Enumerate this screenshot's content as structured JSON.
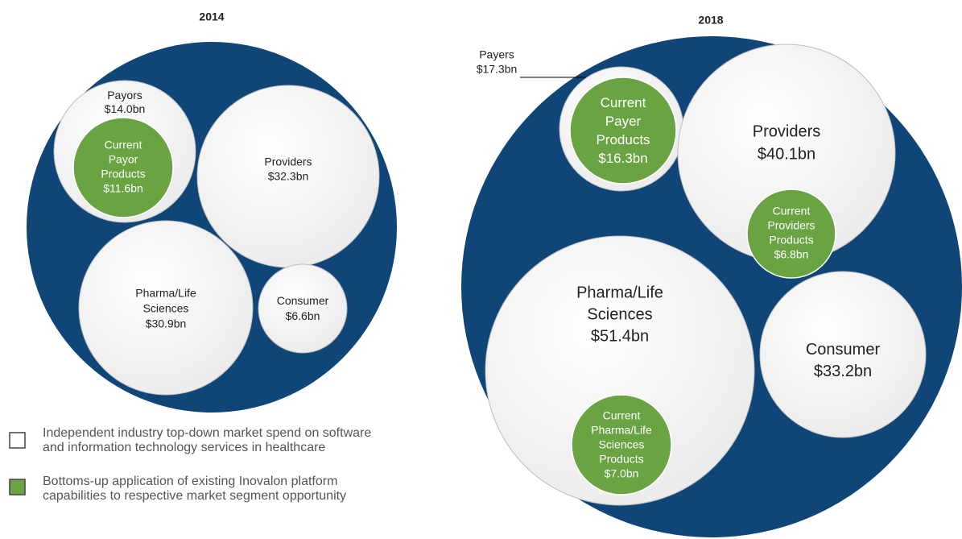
{
  "panels": [
    {
      "title": "2014",
      "circles": [
        {
          "lines": [
            "Payors",
            "$14.0bn"
          ]
        },
        {
          "lines": [
            "Current",
            "Payor",
            "Products",
            "$11.6bn"
          ]
        },
        {
          "lines": [
            "Providers",
            "$32.3bn"
          ]
        },
        {
          "lines": [
            "Pharma/Life",
            "Sciences",
            "$30.9bn"
          ]
        },
        {
          "lines": [
            "Consumer",
            "$6.6bn"
          ]
        }
      ]
    },
    {
      "title": "2018",
      "circles": [
        {
          "lines": [
            "Payers",
            "$17.3bn"
          ]
        },
        {
          "lines": [
            "Current",
            "Payer",
            "Products",
            "$16.3bn"
          ]
        },
        {
          "lines": [
            "Providers",
            "$40.1bn"
          ]
        },
        {
          "lines": [
            "Current",
            "Providers",
            "Products",
            "$6.8bn"
          ]
        },
        {
          "lines": [
            "Pharma/Life",
            "Sciences",
            "$51.4bn"
          ]
        },
        {
          "lines": [
            "Current",
            "Pharma/Life",
            "Sciences",
            "Products",
            "$7.0bn"
          ]
        },
        {
          "lines": [
            "Consumer",
            "$33.2bn"
          ]
        }
      ]
    }
  ],
  "legend": [
    {
      "lines": [
        "Independent industry top-down market spend on software",
        "and information technology services in healthcare"
      ]
    },
    {
      "lines": [
        "Bottoms-up application of existing Inovalon platform",
        "capabilities to respective market segment opportunity"
      ]
    }
  ]
}
